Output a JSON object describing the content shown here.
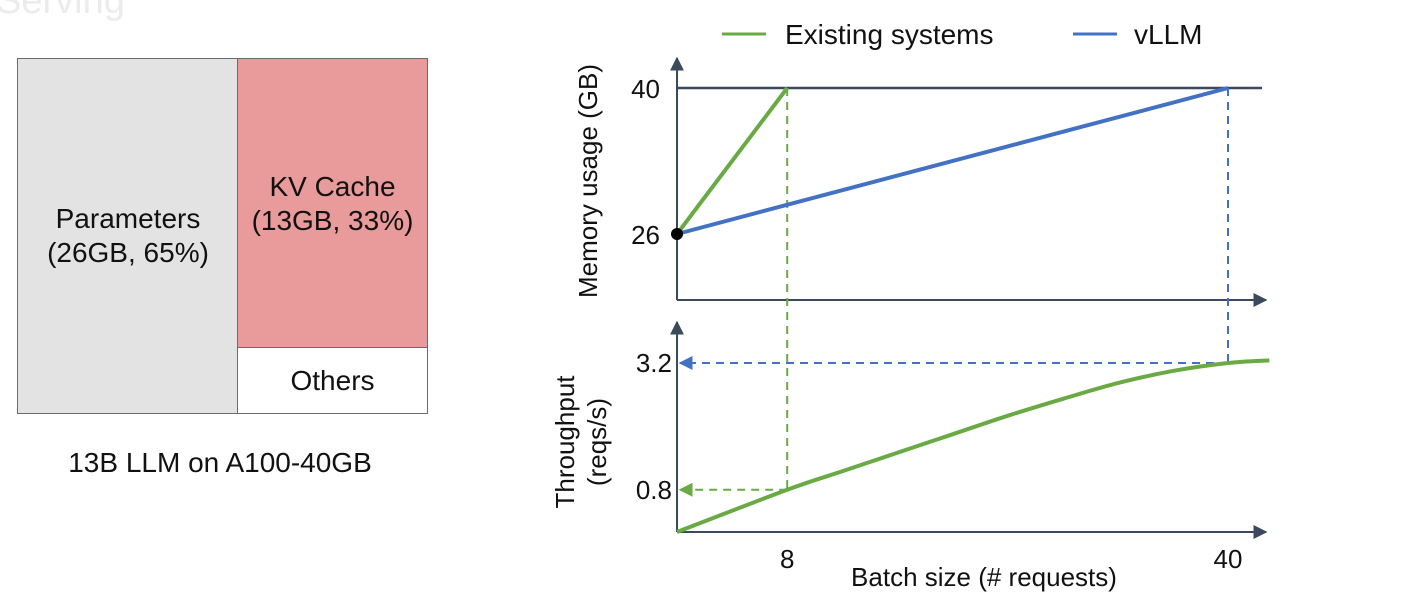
{
  "header_fragment": "Serving",
  "breakdown": {
    "params_label": "Parameters",
    "params_detail": "(26GB, 65%)",
    "kv_label": "KV Cache",
    "kv_detail": "(13GB, 33%)",
    "others_label": "Others",
    "caption": "13B LLM on A100-40GB",
    "fill_colors": {
      "parameters": "#e4e3e3",
      "kv_cache": "#e99a9b",
      "others": "#ffffff"
    }
  },
  "chart_data": [
    {
      "type": "bar",
      "stacked": true,
      "title": "13B LLM on A100-40GB",
      "categories": [
        "Parameters",
        "KV Cache",
        "Others"
      ],
      "values": [
        26,
        13,
        1
      ],
      "labels": [
        "Parameters (26GB, 65%)",
        "KV Cache (13GB, 33%)",
        "Others"
      ]
    },
    {
      "type": "line",
      "legend": [
        "Existing systems",
        "vLLM"
      ],
      "legend_position": "top",
      "colors": {
        "Existing systems": "#6aaa45",
        "vLLM": "#4372c4",
        "axis": "#3a4a5c"
      },
      "xlabel": "Batch size (# requests)",
      "xticks": [
        "8",
        "40"
      ],
      "x_range": [
        0,
        43
      ],
      "memory": {
        "ylabel": "Memory usage (GB)",
        "yticks": [
          "26",
          "40"
        ],
        "y_range": [
          20,
          42
        ],
        "limit": 40,
        "series": [
          {
            "name": "Existing systems",
            "x": [
              0,
              8
            ],
            "y": [
              26,
              40
            ]
          },
          {
            "name": "vLLM",
            "x": [
              0,
              40
            ],
            "y": [
              26,
              40
            ]
          }
        ]
      },
      "throughput": {
        "ylabel": "Throughput\n(reqs/s)",
        "yticks": [
          "0.8",
          "3.2"
        ],
        "y_range": [
          0,
          3.8
        ],
        "series": [
          {
            "name": "Existing systems",
            "x": [
              0,
              8,
              12,
              16,
              20,
              24,
              28,
              32,
              36,
              40,
              43
            ],
            "y": [
              0,
              0.8,
              1.15,
              1.5,
              1.85,
              2.2,
              2.52,
              2.82,
              3.05,
              3.2,
              3.25
            ]
          }
        ],
        "markers": [
          {
            "series": "Existing systems",
            "x": 8,
            "y": 0.8
          },
          {
            "series": "vLLM",
            "x": 40,
            "y": 3.2
          }
        ]
      }
    }
  ]
}
